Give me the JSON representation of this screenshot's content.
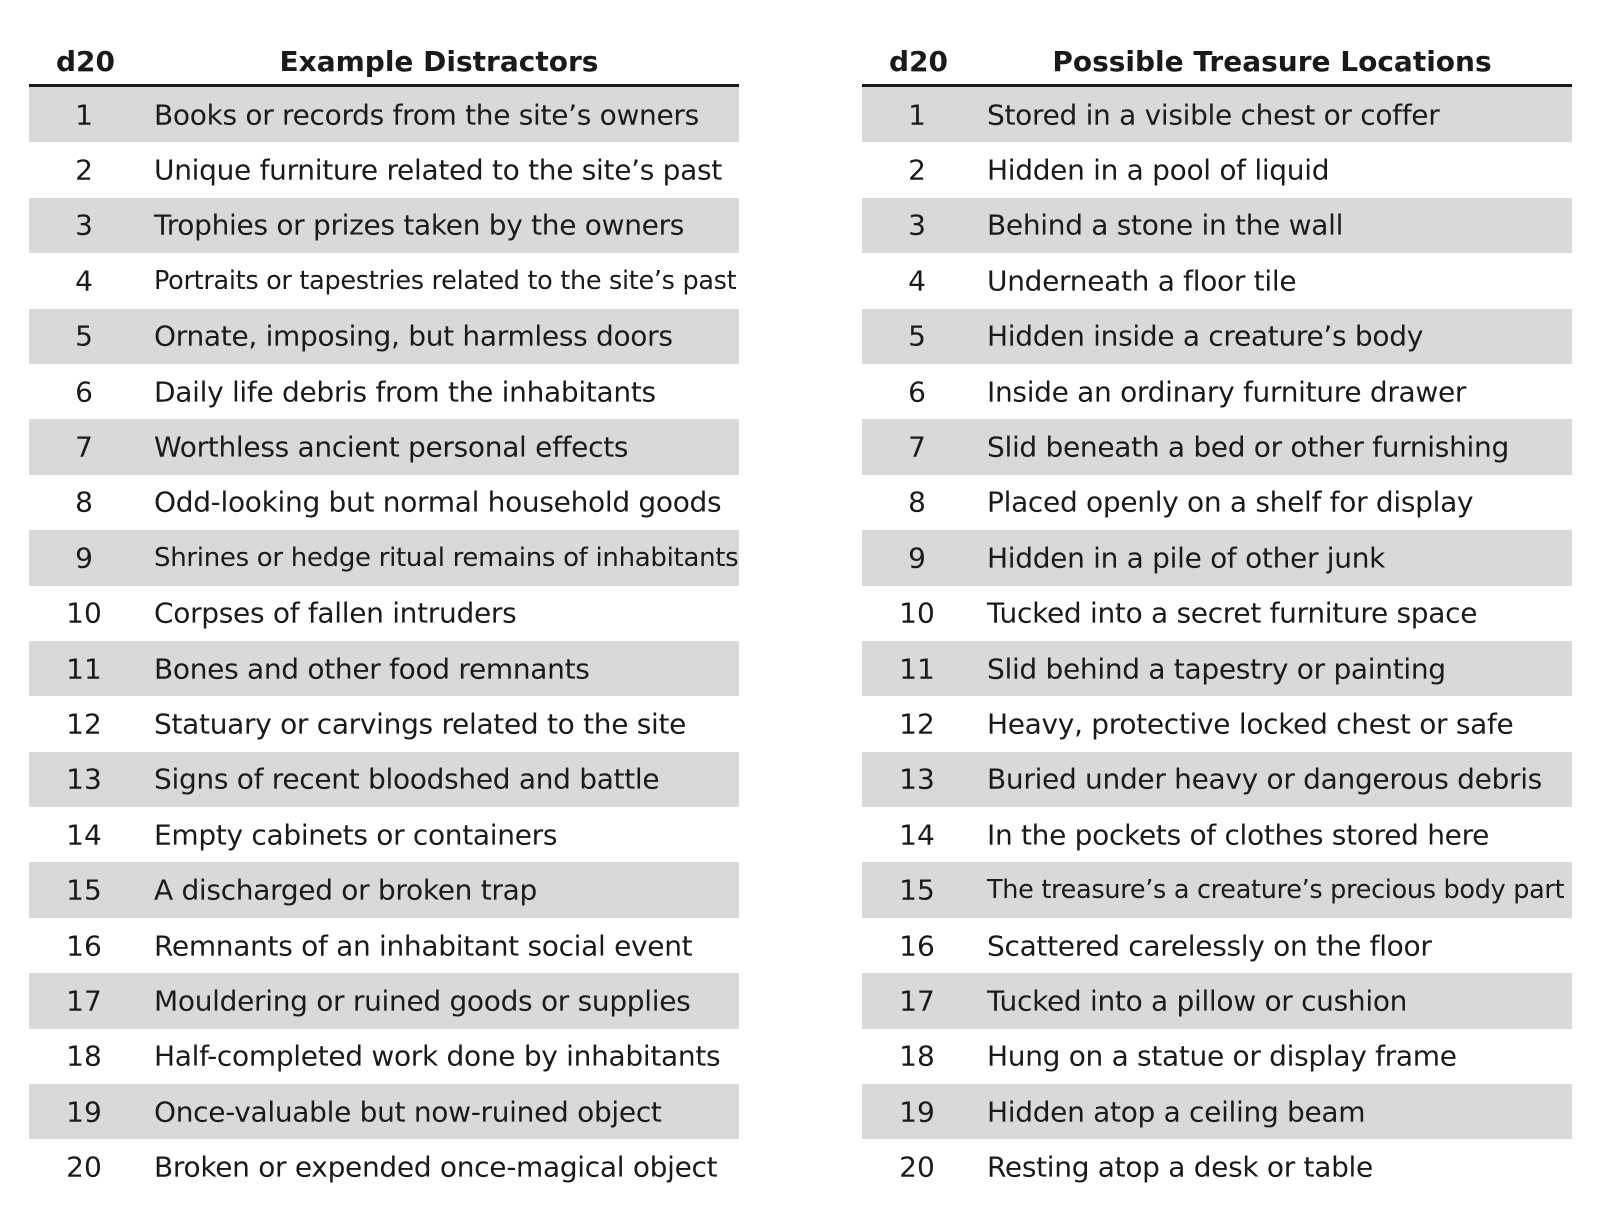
{
  "left_table": {
    "die_header": "d20",
    "title": "Example Distractors",
    "rows": [
      {
        "num": "1",
        "text": "Books or records from the site’s owners"
      },
      {
        "num": "2",
        "text": "Unique furniture related to the site’s past"
      },
      {
        "num": "3",
        "text": "Trophies or prizes taken by the owners"
      },
      {
        "num": "4",
        "text": "Portraits or tapestries related to the site’s past"
      },
      {
        "num": "5",
        "text": "Ornate, imposing, but harmless doors"
      },
      {
        "num": "6",
        "text": "Daily life debris from the inhabitants"
      },
      {
        "num": "7",
        "text": "Worthless ancient personal effects"
      },
      {
        "num": "8",
        "text": "Odd-looking but normal household goods"
      },
      {
        "num": "9",
        "text": "Shrines or hedge ritual remains of inhabitants"
      },
      {
        "num": "10",
        "text": "Corpses of fallen intruders"
      },
      {
        "num": "11",
        "text": "Bones and other food remnants"
      },
      {
        "num": "12",
        "text": "Statuary or carvings related to the site"
      },
      {
        "num": "13",
        "text": "Signs of recent bloodshed and battle"
      },
      {
        "num": "14",
        "text": "Empty cabinets or containers"
      },
      {
        "num": "15",
        "text": "A discharged or broken trap"
      },
      {
        "num": "16",
        "text": "Remnants of an inhabitant social event"
      },
      {
        "num": "17",
        "text": "Mouldering or ruined goods or supplies"
      },
      {
        "num": "18",
        "text": "Half-completed work done by inhabitants"
      },
      {
        "num": "19",
        "text": "Once-valuable but now-ruined object"
      },
      {
        "num": "20",
        "text": "Broken or expended once-magical object"
      }
    ]
  },
  "right_table": {
    "die_header": "d20",
    "title": "Possible Treasure Locations",
    "rows": [
      {
        "num": "1",
        "text": "Stored in a visible chest or coffer"
      },
      {
        "num": "2",
        "text": "Hidden in a pool of liquid"
      },
      {
        "num": "3",
        "text": "Behind a stone in the wall"
      },
      {
        "num": "4",
        "text": "Underneath a floor tile"
      },
      {
        "num": "5",
        "text": "Hidden inside a creature’s body"
      },
      {
        "num": "6",
        "text": "Inside an ordinary furniture drawer"
      },
      {
        "num": "7",
        "text": "Slid beneath a bed or other furnishing"
      },
      {
        "num": "8",
        "text": "Placed openly on a shelf for display"
      },
      {
        "num": "9",
        "text": "Hidden in a pile of other junk"
      },
      {
        "num": "10",
        "text": "Tucked into a secret furniture space"
      },
      {
        "num": "11",
        "text": "Slid behind a tapestry or painting"
      },
      {
        "num": "12",
        "text": "Heavy, protective locked chest or safe"
      },
      {
        "num": "13",
        "text": "Buried under heavy or dangerous debris"
      },
      {
        "num": "14",
        "text": "In the pockets of clothes stored here"
      },
      {
        "num": "15",
        "text": "The treasure’s a creature’s precious body part"
      },
      {
        "num": "16",
        "text": "Scattered carelessly on the floor"
      },
      {
        "num": "17",
        "text": "Tucked into a pillow or cushion"
      },
      {
        "num": "18",
        "text": "Hung on a statue or display frame"
      },
      {
        "num": "19",
        "text": "Hidden atop a ceiling beam"
      },
      {
        "num": "20",
        "text": "Resting atop a desk or table"
      }
    ]
  }
}
